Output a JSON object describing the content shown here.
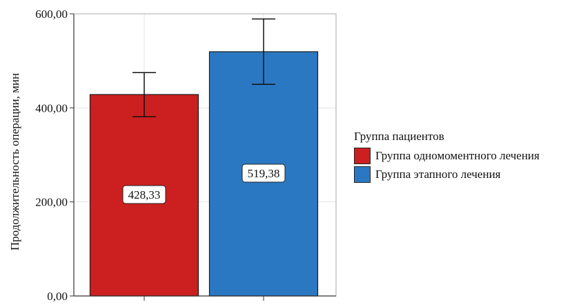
{
  "chart_data": {
    "type": "bar",
    "ylabel": "Продолжительность операции, мин",
    "xlabel": "",
    "ylim": [
      0,
      600
    ],
    "yticks": [
      0,
      200,
      400,
      600
    ],
    "ytick_labels": [
      "0,00",
      "200,00",
      "400,00",
      "600,00"
    ],
    "grid": true,
    "legend_title": "Группа пациентов",
    "legend_position": "right",
    "series": [
      {
        "name": "Группа одномоментного лечения",
        "value": 428.33,
        "label": "428,33",
        "error_low": 381,
        "error_high": 475,
        "color": "#cc1f1f"
      },
      {
        "name": "Группа этапного лечения",
        "value": 519.38,
        "label": "519,38",
        "error_low": 450,
        "error_high": 589,
        "color": "#2b78c2"
      }
    ]
  }
}
